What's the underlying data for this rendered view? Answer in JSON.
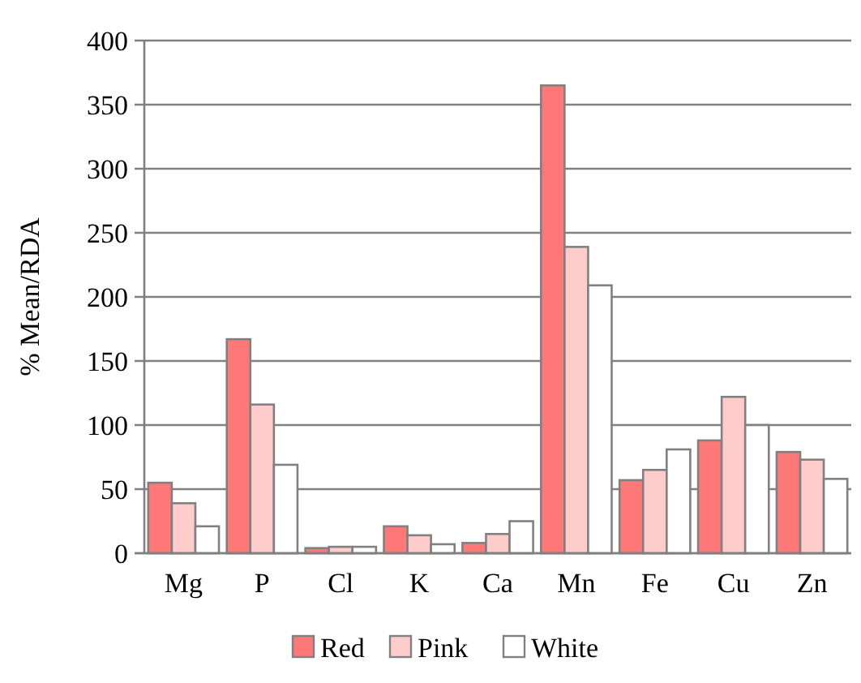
{
  "chart_data": {
    "type": "bar",
    "ylabel": "% Mean/RDA",
    "categories": [
      "Mg",
      "P",
      "Cl",
      "K",
      "Ca",
      "Mn",
      "Fe",
      "Cu",
      "Zn"
    ],
    "series": [
      {
        "name": "Red",
        "color": "#ff7878",
        "values": [
          55,
          167,
          4,
          21,
          8,
          365,
          57,
          88,
          79
        ]
      },
      {
        "name": "Pink",
        "color": "#ffcccc",
        "values": [
          39,
          116,
          5,
          14,
          15,
          239,
          65,
          122,
          73
        ]
      },
      {
        "name": "White",
        "color": "#ffffff",
        "values": [
          21,
          69,
          5,
          7,
          25,
          209,
          81,
          100,
          58
        ]
      }
    ],
    "ylim": [
      0,
      400
    ],
    "yticks": [
      0,
      50,
      100,
      150,
      200,
      250,
      300,
      350,
      400
    ],
    "grid": "y",
    "legend": "bottom"
  }
}
